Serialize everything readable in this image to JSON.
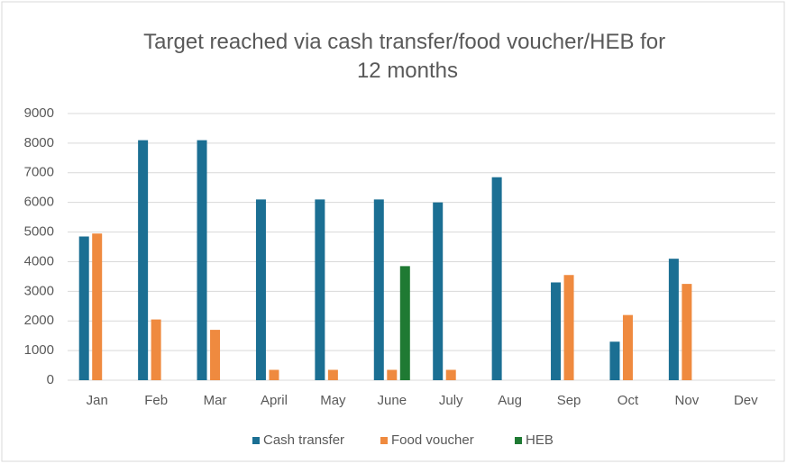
{
  "chart_data": {
    "type": "bar",
    "title": "Target reached via cash transfer/food voucher/HEB for 12 months",
    "categories": [
      "Jan",
      "Feb",
      "Mar",
      "April",
      "May",
      "June",
      "July",
      "Aug",
      "Sep",
      "Oct",
      "Nov",
      "Dev"
    ],
    "series": [
      {
        "name": "Cash transfer",
        "color": "#1b6f93",
        "values": [
          4850,
          8100,
          8100,
          6100,
          6100,
          6100,
          6000,
          6850,
          3300,
          1300,
          4100,
          null
        ]
      },
      {
        "name": "Food voucher",
        "color": "#ef8a3f",
        "values": [
          4950,
          2050,
          1700,
          350,
          350,
          350,
          350,
          null,
          3550,
          2200,
          3250,
          null
        ]
      },
      {
        "name": "HEB",
        "color": "#1f7a33",
        "values": [
          null,
          null,
          null,
          null,
          null,
          3850,
          null,
          null,
          null,
          null,
          null,
          null
        ]
      }
    ],
    "ylim": [
      0,
      9000
    ],
    "yticks": [
      0,
      1000,
      2000,
      3000,
      4000,
      5000,
      6000,
      7000,
      8000,
      9000
    ],
    "grid": true,
    "legend": "bottom"
  }
}
